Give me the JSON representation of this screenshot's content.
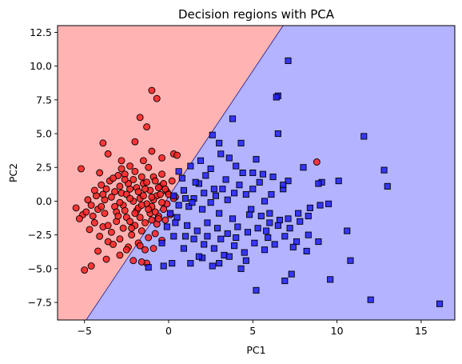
{
  "chart_data": {
    "type": "scatter",
    "title": "Decision regions with PCA",
    "xlabel": "PC1",
    "ylabel": "PC2",
    "xlim": [
      -6.6,
      17.0
    ],
    "ylim": [
      -8.8,
      13.0
    ],
    "xticks": [
      -5,
      0,
      5,
      10,
      15
    ],
    "yticks": [
      -7.5,
      -5.0,
      -2.5,
      0.0,
      2.5,
      5.0,
      7.5,
      10.0,
      12.5
    ],
    "xtick_labels": [
      "−5",
      "0",
      "5",
      "10",
      "15"
    ],
    "ytick_labels": [
      "−7.5",
      "−5.0",
      "−2.5",
      "0.0",
      "2.5",
      "5.0",
      "7.5",
      "10.0",
      "12.5"
    ],
    "grid": false,
    "decision_boundary": {
      "points": [
        [
          -4.9,
          -8.8
        ],
        [
          6.8,
          13.0
        ]
      ],
      "left_region_color": "#ffb3b3",
      "right_region_color": "#b3b3ff"
    },
    "series": [
      {
        "marker": "circle",
        "color": "#ff2020",
        "points": [
          [
            -1.0,
            8.2
          ],
          [
            -0.7,
            7.6
          ],
          [
            -1.7,
            6.2
          ],
          [
            -3.9,
            4.3
          ],
          [
            -1.3,
            5.5
          ],
          [
            0.3,
            3.5
          ],
          [
            0.5,
            3.4
          ],
          [
            -5.2,
            2.4
          ],
          [
            -4.1,
            2.1
          ],
          [
            -3.6,
            3.5
          ],
          [
            -2.8,
            3.0
          ],
          [
            -2.3,
            2.6
          ],
          [
            -2.0,
            4.4
          ],
          [
            -1.5,
            3.0
          ],
          [
            -1.0,
            3.7
          ],
          [
            -0.4,
            3.2
          ],
          [
            -5.5,
            -0.5
          ],
          [
            -5.1,
            -1.0
          ],
          [
            -4.9,
            -0.8
          ],
          [
            -4.6,
            -0.3
          ],
          [
            -4.3,
            0.4
          ],
          [
            -4.0,
            1.2
          ],
          [
            -3.8,
            0.1
          ],
          [
            -3.5,
            1.5
          ],
          [
            -3.2,
            -0.4
          ],
          [
            -3.0,
            1.9
          ],
          [
            -2.8,
            0.6
          ],
          [
            -2.6,
            2.0
          ],
          [
            -2.5,
            -1.2
          ],
          [
            -2.3,
            0.9
          ],
          [
            -2.1,
            1.6
          ],
          [
            -1.9,
            -0.7
          ],
          [
            -1.7,
            0.2
          ],
          [
            -1.5,
            1.3
          ],
          [
            -1.3,
            -0.2
          ],
          [
            -1.1,
            0.8
          ],
          [
            -0.9,
            1.8
          ],
          [
            -0.7,
            0.4
          ],
          [
            -0.5,
            1.1
          ],
          [
            -0.3,
            -0.6
          ],
          [
            -0.1,
            0.7
          ],
          [
            0.2,
            1.5
          ],
          [
            0.4,
            0.3
          ],
          [
            -4.7,
            -2.1
          ],
          [
            -4.4,
            -1.6
          ],
          [
            -4.1,
            -2.6
          ],
          [
            -3.9,
            -1.9
          ],
          [
            -3.6,
            -3.0
          ],
          [
            -3.4,
            -2.3
          ],
          [
            -3.1,
            -1.5
          ],
          [
            -2.9,
            -2.8
          ],
          [
            -2.7,
            -2.0
          ],
          [
            -2.4,
            -3.4
          ],
          [
            -2.2,
            -2.5
          ],
          [
            -2.0,
            -1.8
          ],
          [
            -1.8,
            -3.1
          ],
          [
            -1.6,
            -2.2
          ],
          [
            -1.4,
            -3.6
          ],
          [
            -1.2,
            -2.7
          ],
          [
            -1.0,
            -1.4
          ],
          [
            -0.8,
            -2.4
          ],
          [
            -0.6,
            -1.1
          ],
          [
            -5.0,
            -5.1
          ],
          [
            -4.6,
            -4.8
          ],
          [
            -4.2,
            -3.7
          ],
          [
            -3.7,
            -4.3
          ],
          [
            -3.3,
            -3.2
          ],
          [
            -2.9,
            -4.0
          ],
          [
            -2.5,
            -3.6
          ],
          [
            -2.1,
            -4.4
          ],
          [
            -1.7,
            -3.3
          ],
          [
            -1.3,
            -4.6
          ],
          [
            -0.9,
            -3.5
          ],
          [
            -0.4,
            -2.9
          ],
          [
            -3.8,
            -0.9
          ],
          [
            -3.4,
            0.3
          ],
          [
            -3.1,
            -0.8
          ],
          [
            -2.9,
            1.1
          ],
          [
            -2.7,
            -0.3
          ],
          [
            -2.5,
            0.5
          ],
          [
            -2.3,
            -1.5
          ],
          [
            -2.1,
            0.0
          ],
          [
            -1.9,
            1.0
          ],
          [
            -1.7,
            -1.2
          ],
          [
            -1.5,
            0.4
          ],
          [
            -1.3,
            1.4
          ],
          [
            -1.1,
            -0.9
          ],
          [
            -0.9,
            0.1
          ],
          [
            -0.7,
            -1.7
          ],
          [
            -0.5,
            0.5
          ],
          [
            -0.3,
            1.3
          ],
          [
            -0.1,
            -0.2
          ],
          [
            0.1,
            -1.0
          ],
          [
            0.3,
            0.2
          ],
          [
            -4.4,
            0.8
          ],
          [
            -4.2,
            -0.6
          ],
          [
            -3.9,
            0.5
          ],
          [
            -3.6,
            -1.8
          ],
          [
            -3.3,
            1.7
          ],
          [
            -3.0,
            -1.1
          ],
          [
            -2.8,
            2.4
          ],
          [
            -2.6,
            -0.7
          ],
          [
            -2.4,
            1.3
          ],
          [
            -2.2,
            -2.0
          ],
          [
            -2.0,
            2.2
          ],
          [
            -1.8,
            -0.5
          ],
          [
            -1.6,
            1.8
          ],
          [
            -1.4,
            -1.6
          ],
          [
            -1.2,
            2.5
          ],
          [
            -1.0,
            -0.4
          ],
          [
            -0.8,
            1.5
          ],
          [
            -0.6,
            -1.3
          ],
          [
            -0.4,
            2.0
          ],
          [
            -0.2,
            0.9
          ],
          [
            -5.3,
            -1.3
          ],
          [
            -4.8,
            0.1
          ],
          [
            -4.5,
            -1.1
          ],
          [
            -4.0,
            -0.4
          ],
          [
            -3.7,
            0.9
          ],
          [
            -3.2,
            0.7
          ],
          [
            -2.9,
            -0.1
          ],
          [
            -2.6,
            1.6
          ],
          [
            -2.3,
            0.2
          ],
          [
            -2.0,
            -0.9
          ],
          [
            -1.8,
            0.7
          ],
          [
            -1.6,
            -0.3
          ],
          [
            -1.4,
            0.9
          ],
          [
            -1.2,
            -0.6
          ],
          [
            -1.0,
            0.3
          ],
          [
            -0.8,
            -0.8
          ],
          [
            -0.6,
            1.0
          ],
          [
            -0.4,
            -0.1
          ],
          [
            -0.2,
            -1.4
          ],
          [
            0.0,
            0.5
          ],
          [
            -1.6,
            -4.5
          ],
          [
            8.8,
            2.9
          ]
        ]
      },
      {
        "marker": "square",
        "color": "#2020ff",
        "points": [
          [
            7.1,
            10.4
          ],
          [
            6.5,
            7.8
          ],
          [
            6.4,
            7.7
          ],
          [
            3.8,
            6.1
          ],
          [
            2.6,
            4.9
          ],
          [
            6.5,
            5.0
          ],
          [
            4.3,
            4.3
          ],
          [
            3.1,
            3.5
          ],
          [
            5.2,
            3.1
          ],
          [
            3.6,
            3.2
          ],
          [
            11.6,
            4.8
          ],
          [
            12.8,
            2.3
          ],
          [
            13.0,
            1.1
          ],
          [
            10.1,
            1.5
          ],
          [
            9.1,
            1.4
          ],
          [
            8.9,
            1.3
          ],
          [
            8.0,
            2.5
          ],
          [
            7.1,
            1.5
          ],
          [
            6.8,
            0.9
          ],
          [
            6.1,
            0.5
          ],
          [
            5.4,
            1.4
          ],
          [
            5.0,
            0.9
          ],
          [
            4.6,
            0.5
          ],
          [
            4.2,
            1.2
          ],
          [
            3.9,
            0.6
          ],
          [
            3.5,
            0.1
          ],
          [
            3.2,
            0.9
          ],
          [
            2.8,
            0.4
          ],
          [
            2.5,
            -0.1
          ],
          [
            2.1,
            0.6
          ],
          [
            1.8,
            1.3
          ],
          [
            1.5,
            0.2
          ],
          [
            1.2,
            -0.4
          ],
          [
            0.9,
            0.8
          ],
          [
            0.6,
            -0.3
          ],
          [
            0.3,
            0.4
          ],
          [
            4.9,
            -0.6
          ],
          [
            5.5,
            -1.1
          ],
          [
            6.0,
            -0.9
          ],
          [
            6.6,
            -1.4
          ],
          [
            7.2,
            -2.0
          ],
          [
            7.8,
            -1.5
          ],
          [
            8.4,
            -0.5
          ],
          [
            9.0,
            -0.3
          ],
          [
            9.5,
            -0.2
          ],
          [
            8.3,
            -2.5
          ],
          [
            7.6,
            -3.0
          ],
          [
            6.9,
            -2.6
          ],
          [
            6.3,
            -3.2
          ],
          [
            5.7,
            -3.6
          ],
          [
            5.1,
            -3.1
          ],
          [
            4.5,
            -3.8
          ],
          [
            3.9,
            -3.3
          ],
          [
            3.3,
            -4.0
          ],
          [
            2.7,
            -3.5
          ],
          [
            2.1,
            -3.2
          ],
          [
            1.5,
            -2.8
          ],
          [
            0.9,
            -3.5
          ],
          [
            0.3,
            -2.6
          ],
          [
            -0.1,
            -1.9
          ],
          [
            0.5,
            -1.2
          ],
          [
            1.1,
            -1.8
          ],
          [
            1.7,
            -2.2
          ],
          [
            2.3,
            -1.6
          ],
          [
            2.9,
            -2.0
          ],
          [
            3.5,
            -2.4
          ],
          [
            4.1,
            -1.9
          ],
          [
            4.7,
            -2.3
          ],
          [
            5.3,
            -2.0
          ],
          [
            5.9,
            -2.7
          ],
          [
            6.5,
            -1.8
          ],
          [
            7.1,
            -1.3
          ],
          [
            7.7,
            -0.9
          ],
          [
            8.3,
            -1.1
          ],
          [
            4.3,
            -5.0
          ],
          [
            5.2,
            -6.6
          ],
          [
            7.3,
            -5.4
          ],
          [
            6.9,
            -5.9
          ],
          [
            9.6,
            -5.8
          ],
          [
            12.0,
            -7.3
          ],
          [
            16.1,
            -7.6
          ],
          [
            10.8,
            -4.4
          ],
          [
            10.6,
            -2.2
          ],
          [
            8.9,
            -3.0
          ],
          [
            8.2,
            -3.7
          ],
          [
            3.0,
            4.3
          ],
          [
            2.2,
            1.9
          ],
          [
            1.6,
            1.4
          ],
          [
            2.5,
            2.4
          ],
          [
            1.3,
            2.6
          ],
          [
            2.0,
            -0.6
          ],
          [
            3.0,
            -0.9
          ],
          [
            3.8,
            -1.3
          ],
          [
            4.4,
            2.1
          ],
          [
            5.6,
            2.0
          ],
          [
            6.2,
            1.8
          ],
          [
            0.8,
            1.7
          ],
          [
            1.0,
            0.2
          ],
          [
            0.1,
            -0.9
          ],
          [
            0.6,
            2.2
          ],
          [
            1.9,
            3.0
          ],
          [
            4.0,
            2.6
          ],
          [
            5.0,
            2.1
          ],
          [
            6.8,
            1.2
          ],
          [
            3.4,
            1.6
          ],
          [
            2.7,
            0.9
          ],
          [
            1.4,
            -0.1
          ],
          [
            0.4,
            -1.6
          ],
          [
            2.3,
            -2.6
          ],
          [
            3.1,
            -2.8
          ],
          [
            4.0,
            -2.7
          ],
          [
            4.6,
            -4.4
          ],
          [
            2.0,
            -4.2
          ],
          [
            1.3,
            -4.6
          ],
          [
            -0.3,
            -4.8
          ],
          [
            -1.2,
            -4.9
          ],
          [
            2.6,
            -4.8
          ],
          [
            3.6,
            -4.1
          ],
          [
            1.0,
            -2.6
          ],
          [
            -0.4,
            -3.1
          ],
          [
            1.8,
            -4.1
          ],
          [
            0.2,
            -4.6
          ],
          [
            3.0,
            -4.6
          ],
          [
            5.8,
            -2.2
          ],
          [
            7.4,
            -3.4
          ],
          [
            6.0,
            -1.6
          ],
          [
            4.8,
            -1.0
          ],
          [
            5.7,
            0.0
          ]
        ]
      }
    ]
  }
}
